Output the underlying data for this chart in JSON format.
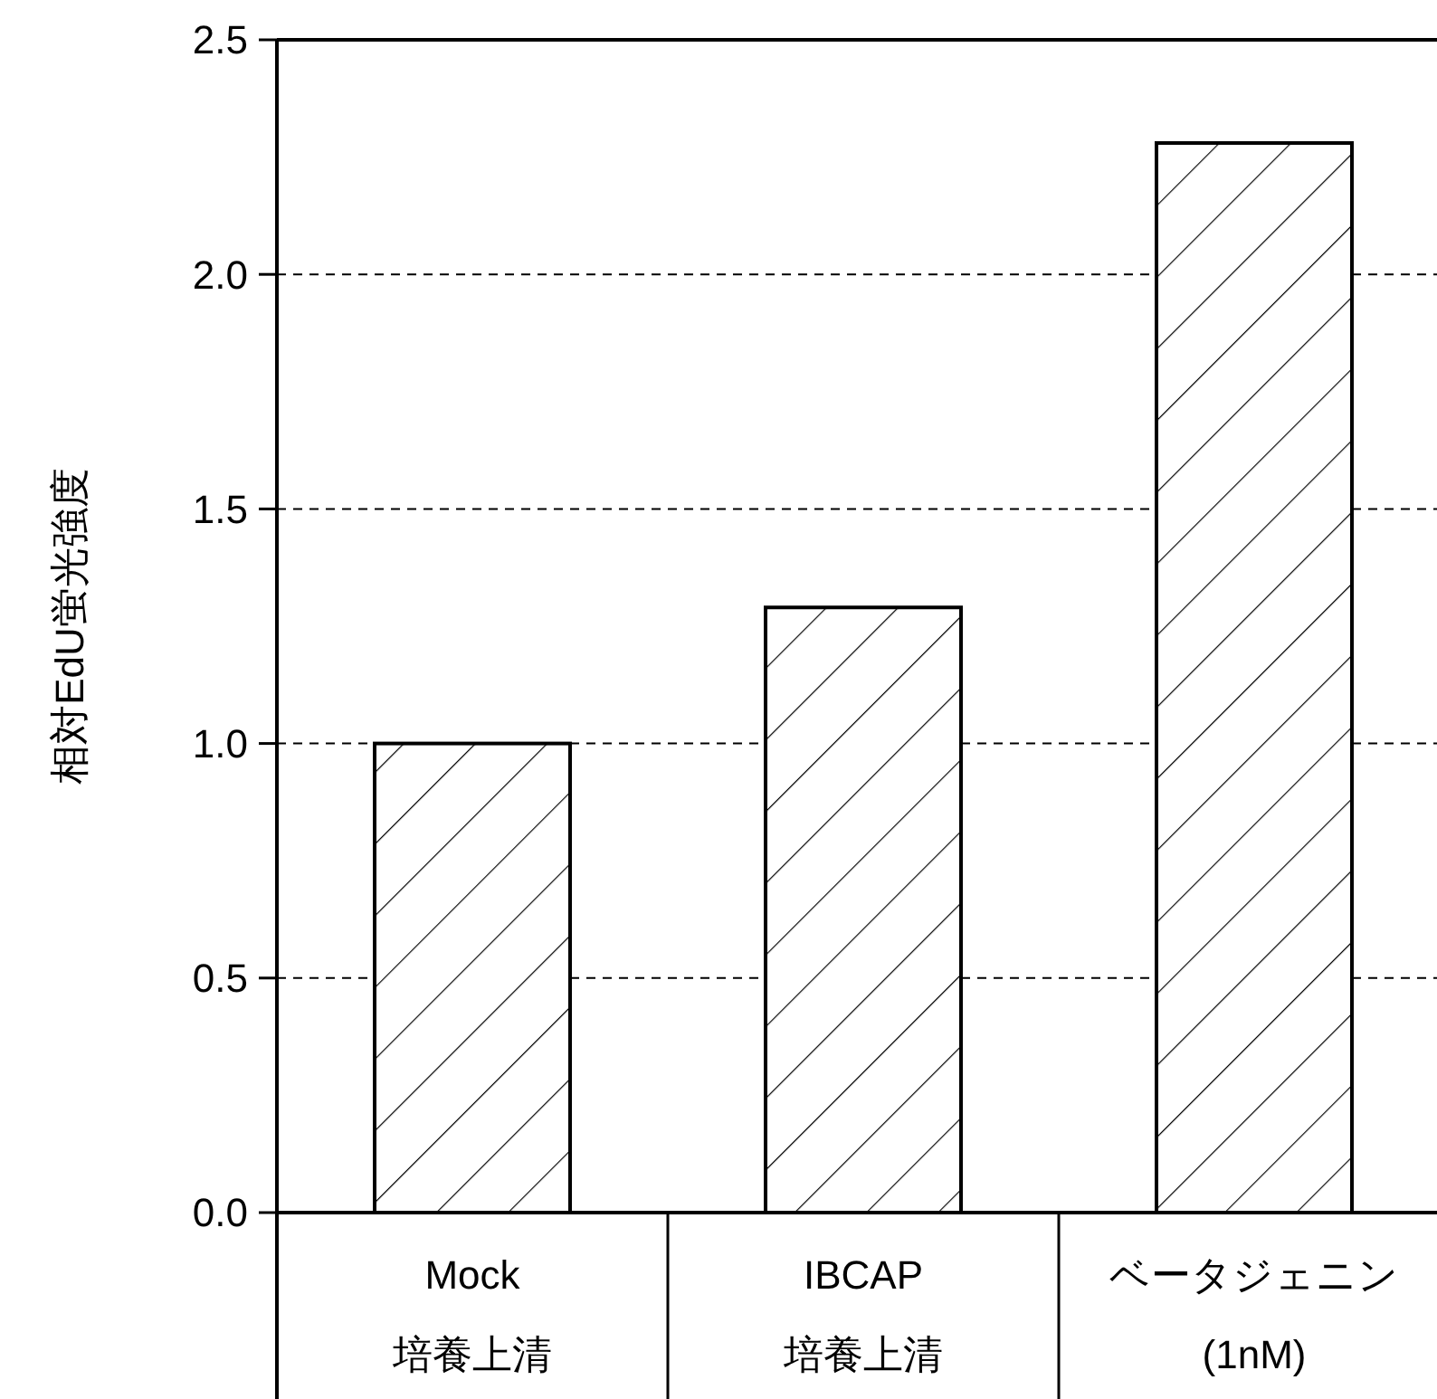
{
  "chart_data": {
    "type": "bar",
    "ylabel": "相対EdU蛍光強度",
    "categories": [
      "Mock\n培養上清",
      "IBCAP\n培養上清",
      "ベータジェニン\n(1nM)"
    ],
    "values": [
      1.0,
      1.29,
      2.28
    ],
    "color": "#000000",
    "ylim": [
      0,
      2.5
    ],
    "yticks": [
      {
        "value": 0,
        "label": "0.0"
      },
      {
        "value": 0.5,
        "label": "0.5"
      },
      {
        "value": 1,
        "label": "1.0"
      },
      {
        "value": 1.5,
        "label": "1.5"
      },
      {
        "value": 2,
        "label": "2.0"
      },
      {
        "value": 2.5,
        "label": "2.5"
      }
    ],
    "grid": "y"
  }
}
